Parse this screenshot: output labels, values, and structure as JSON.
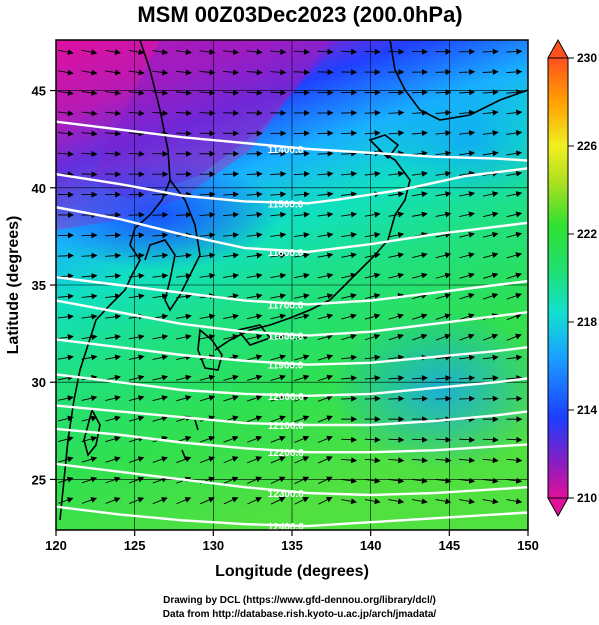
{
  "title": "MSM 00Z03Dec2023 (200.0hPa)",
  "x_axis": {
    "label": "Longitude (degrees)",
    "ticks": [
      120,
      125,
      130,
      135,
      140,
      145,
      150
    ],
    "range": [
      120,
      150
    ]
  },
  "y_axis": {
    "label": "Latitude  (degrees)",
    "ticks": [
      25,
      30,
      35,
      40,
      45
    ],
    "range": [
      22.4,
      47.6
    ]
  },
  "colorbar": {
    "ticks": [
      230,
      226,
      222,
      218,
      214,
      210
    ],
    "range": [
      210,
      230
    ],
    "colors": [
      "#e0109a",
      "#7a1ec8",
      "#1e3cff",
      "#1aa0ff",
      "#12e0d0",
      "#20e060",
      "#30e030",
      "#b0e020",
      "#f0f020",
      "#ffa000",
      "#ff5020"
    ]
  },
  "contours": [
    {
      "value": "11400.0",
      "points": [
        [
          120,
          43.4
        ],
        [
          124,
          43.0
        ],
        [
          128,
          42.6
        ],
        [
          132,
          42.3
        ],
        [
          136,
          42.0
        ],
        [
          140,
          41.8
        ],
        [
          144,
          41.6
        ],
        [
          148,
          41.5
        ],
        [
          150,
          41.4
        ]
      ]
    },
    {
      "value": "11500.0",
      "points": [
        [
          120,
          40.7
        ],
        [
          124,
          40.2
        ],
        [
          128,
          39.6
        ],
        [
          132,
          39.3
        ],
        [
          136,
          39.2
        ],
        [
          138,
          39.4
        ],
        [
          142,
          39.9
        ],
        [
          146,
          40.6
        ],
        [
          150,
          41.0
        ]
      ]
    },
    {
      "value": "11600.0",
      "points": [
        [
          120,
          39.0
        ],
        [
          124,
          38.4
        ],
        [
          128,
          37.6
        ],
        [
          132,
          36.9
        ],
        [
          136,
          36.7
        ],
        [
          140,
          37.1
        ],
        [
          144,
          37.6
        ],
        [
          148,
          38.0
        ],
        [
          150,
          38.2
        ]
      ]
    },
    {
      "value": "11700.0",
      "points": [
        [
          120,
          35.4
        ],
        [
          124,
          35.0
        ],
        [
          128,
          34.6
        ],
        [
          132,
          34.2
        ],
        [
          136,
          34.0
        ],
        [
          140,
          34.2
        ],
        [
          144,
          34.6
        ],
        [
          148,
          35.0
        ],
        [
          150,
          35.2
        ]
      ]
    },
    {
      "value": "11800.0",
      "points": [
        [
          120,
          34.2
        ],
        [
          124,
          33.6
        ],
        [
          128,
          33.0
        ],
        [
          132,
          32.6
        ],
        [
          136,
          32.4
        ],
        [
          140,
          32.6
        ],
        [
          144,
          33.0
        ],
        [
          148,
          33.4
        ],
        [
          150,
          33.6
        ]
      ]
    },
    {
      "value": "11900.0",
      "points": [
        [
          120,
          32.2
        ],
        [
          124,
          31.8
        ],
        [
          128,
          31.4
        ],
        [
          132,
          31.1
        ],
        [
          136,
          30.9
        ],
        [
          140,
          31.0
        ],
        [
          144,
          31.3
        ],
        [
          148,
          31.6
        ],
        [
          150,
          31.8
        ]
      ]
    },
    {
      "value": "12000.0",
      "points": [
        [
          120,
          30.4
        ],
        [
          124,
          30.0
        ],
        [
          128,
          29.6
        ],
        [
          132,
          29.4
        ],
        [
          136,
          29.3
        ],
        [
          140,
          29.4
        ],
        [
          144,
          29.7
        ],
        [
          148,
          30.0
        ],
        [
          150,
          30.2
        ]
      ]
    },
    {
      "value": "12100.0",
      "points": [
        [
          120,
          28.8
        ],
        [
          124,
          28.5
        ],
        [
          128,
          28.2
        ],
        [
          132,
          27.9
        ],
        [
          136,
          27.8
        ],
        [
          140,
          27.8
        ],
        [
          144,
          28.0
        ],
        [
          148,
          28.3
        ],
        [
          150,
          28.5
        ]
      ]
    },
    {
      "value": "12200.0",
      "points": [
        [
          120,
          27.6
        ],
        [
          124,
          27.3
        ],
        [
          128,
          26.9
        ],
        [
          132,
          26.6
        ],
        [
          136,
          26.4
        ],
        [
          140,
          26.4
        ],
        [
          144,
          26.5
        ],
        [
          148,
          26.7
        ],
        [
          150,
          26.8
        ]
      ]
    },
    {
      "value": "12300.0",
      "points": [
        [
          120,
          25.8
        ],
        [
          124,
          25.4
        ],
        [
          128,
          25.0
        ],
        [
          132,
          24.6
        ],
        [
          136,
          24.3
        ],
        [
          140,
          24.2
        ],
        [
          144,
          24.3
        ],
        [
          148,
          24.5
        ],
        [
          150,
          24.6
        ]
      ]
    },
    {
      "value": "12400.0",
      "points": [
        [
          120,
          23.6
        ],
        [
          124,
          23.2
        ],
        [
          128,
          22.9
        ],
        [
          132,
          22.7
        ],
        [
          136,
          22.6
        ],
        [
          140,
          22.8
        ],
        [
          144,
          23.0
        ],
        [
          148,
          23.2
        ],
        [
          150,
          23.3
        ]
      ]
    }
  ],
  "credits": {
    "line1": "Drawing by DCL (https://www.gfd-dennou.org/library/dcl/)",
    "line2": "Data from http://database.rish.kyoto-u.ac.jp/arch/jmadata/"
  }
}
